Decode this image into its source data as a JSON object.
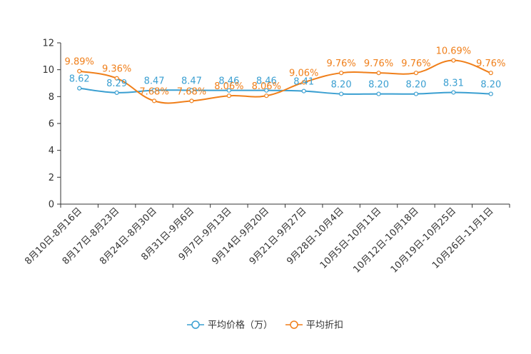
{
  "chart_data": {
    "type": "line",
    "categories": [
      "8月10日-8月16日",
      "8月17日-8月23日",
      "8月24日-8月30日",
      "8月31日-9月6日",
      "9月7日-9月13日",
      "9月14日-9月20日",
      "9月21日-9月27日",
      "9月28日-10月4日",
      "10月5日-10月11日",
      "10月12日-10月18日",
      "10月19日-10月25日",
      "10月26日-11月1日"
    ],
    "series": [
      {
        "name": "平均价格（万）",
        "color": "#3a9fd1",
        "values": [
          8.62,
          8.29,
          8.47,
          8.47,
          8.46,
          8.46,
          8.41,
          8.2,
          8.2,
          8.2,
          8.31,
          8.2
        ],
        "labels": [
          "8.62",
          "8.29",
          "8.47",
          "8.47",
          "8.46",
          "8.46",
          "8.41",
          "8.20",
          "8.20",
          "8.20",
          "8.31",
          "8.20"
        ]
      },
      {
        "name": "平均折扣",
        "color": "#f07f1a",
        "values": [
          9.89,
          9.36,
          7.68,
          7.68,
          8.06,
          8.06,
          9.06,
          9.76,
          9.76,
          9.76,
          10.69,
          9.76
        ],
        "labels": [
          "9.89%",
          "9.36%",
          "7.68%",
          "7.68%",
          "8.06%",
          "8.06%",
          "9.06%",
          "9.76%",
          "9.76%",
          "9.76%",
          "10.69%",
          "9.76%"
        ]
      }
    ],
    "ylim": [
      0,
      12
    ],
    "yticks": [
      0,
      2,
      4,
      6,
      8,
      10,
      12
    ],
    "title": "",
    "xlabel": "",
    "ylabel": "",
    "legend_position": "bottom-center"
  }
}
